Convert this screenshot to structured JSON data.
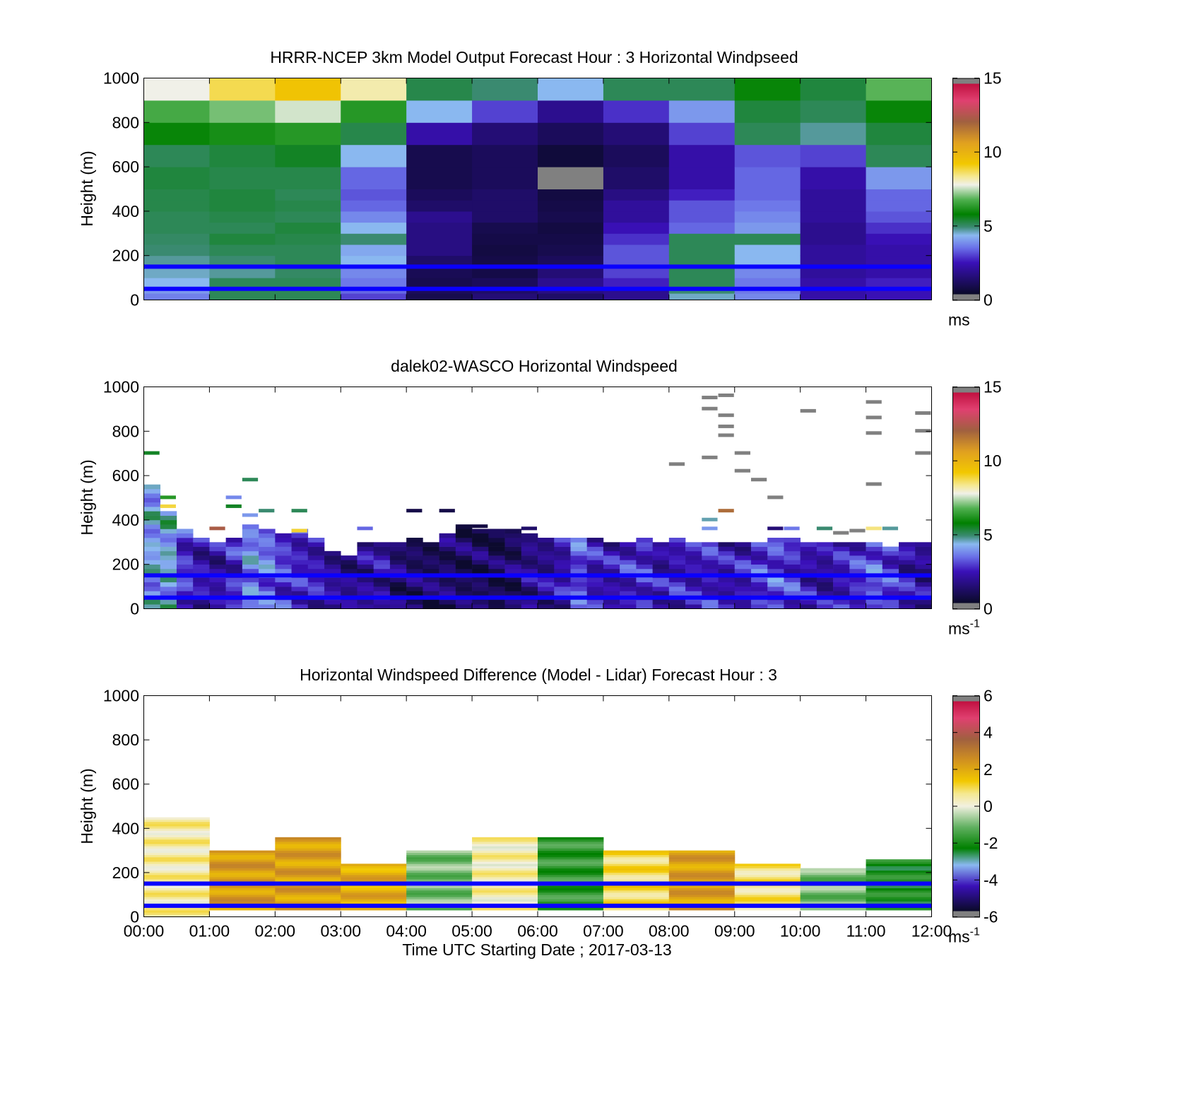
{
  "figure": {
    "xlabel": "Time UTC  Starting Date ; 2017-03-13",
    "xticks": [
      "00:00",
      "01:00",
      "02:00",
      "03:00",
      "04:00",
      "05:00",
      "06:00",
      "07:00",
      "08:00",
      "09:00",
      "10:00",
      "11:00",
      "12:00"
    ],
    "reference_lines_m": [
      50,
      150
    ],
    "reference_line_color": "#0a00ff"
  },
  "chart_data": [
    {
      "type": "heatmap",
      "title": "HRRR-NCEP 3km Model Output   Forecast Hour : 3 Horizontal Windpseed",
      "ylabel": "Height (m)",
      "ylim": [
        0,
        1000
      ],
      "yticks": [
        "0",
        "200",
        "400",
        "600",
        "800",
        "1000"
      ],
      "colorbar": {
        "min": 0,
        "max": 15,
        "ticks": [
          "0",
          "5",
          "10",
          "15"
        ],
        "unit": "ms",
        "unit_sup": "",
        "scheme": "speed"
      },
      "time_bins_h": [
        0,
        1,
        2,
        3,
        4,
        5,
        6,
        7,
        8,
        9,
        10,
        11
      ],
      "height_edges_m": [
        0,
        30,
        60,
        100,
        150,
        200,
        250,
        300,
        350,
        400,
        450,
        500,
        600,
        700,
        800,
        900,
        1000
      ],
      "values_ms": [
        [
          3.5,
          5.0,
          5.0,
          2.8,
          0.6,
          1.2,
          1.0,
          1.6,
          4.4,
          3.6,
          2.0,
          2.2
        ],
        [
          3.8,
          5.0,
          5.0,
          3.2,
          0.8,
          1.0,
          1.4,
          1.6,
          4.8,
          3.4,
          2.0,
          2.2
        ],
        [
          4.2,
          5.0,
          5.0,
          3.4,
          0.6,
          0.8,
          1.6,
          2.4,
          5.0,
          3.4,
          2.0,
          2.4
        ],
        [
          4.4,
          4.6,
          4.9,
          3.6,
          0.7,
          0.5,
          1.2,
          2.8,
          5.0,
          3.6,
          1.8,
          2.0
        ],
        [
          4.6,
          4.8,
          5.0,
          4.2,
          1.0,
          0.5,
          0.8,
          3.0,
          5.0,
          4.2,
          1.8,
          2.0
        ],
        [
          4.8,
          5.0,
          5.0,
          4.0,
          1.4,
          0.4,
          0.6,
          3.0,
          5.0,
          4.2,
          1.8,
          2.0
        ],
        [
          4.9,
          5.2,
          5.1,
          4.8,
          1.4,
          0.5,
          0.5,
          2.6,
          5.0,
          5.0,
          1.6,
          2.2
        ],
        [
          5.0,
          5.0,
          5.2,
          4.2,
          1.4,
          0.6,
          0.4,
          2.2,
          3.2,
          3.8,
          1.6,
          2.6
        ],
        [
          5.0,
          5.1,
          5.0,
          3.6,
          1.6,
          1.0,
          0.6,
          1.8,
          3.0,
          3.6,
          1.8,
          3.0
        ],
        [
          5.1,
          5.2,
          5.1,
          3.2,
          1.0,
          1.0,
          0.5,
          1.8,
          3.0,
          3.4,
          1.8,
          3.2
        ],
        [
          5.1,
          5.2,
          5.0,
          3.0,
          0.8,
          1.0,
          0.4,
          1.4,
          2.4,
          3.2,
          1.8,
          3.2
        ],
        [
          5.2,
          5.1,
          5.1,
          3.2,
          0.6,
          0.8,
          0.0,
          1.0,
          2.0,
          3.2,
          2.0,
          3.8
        ],
        [
          5.0,
          5.2,
          5.4,
          4.2,
          0.6,
          0.8,
          0.3,
          0.8,
          2.0,
          3.0,
          2.8,
          5.0
        ],
        [
          5.8,
          6.0,
          6.2,
          5.1,
          2.0,
          1.2,
          0.8,
          1.2,
          2.8,
          5.0,
          4.6,
          5.2
        ],
        [
          6.6,
          7.0,
          7.6,
          6.2,
          4.2,
          2.8,
          1.6,
          2.6,
          3.8,
          5.2,
          5.0,
          5.8
        ],
        [
          7.8,
          8.8,
          9.5,
          8.2,
          5.1,
          4.8,
          4.2,
          5.0,
          5.0,
          5.8,
          5.2,
          6.8
        ]
      ]
    },
    {
      "type": "heatmap",
      "title": "dalek02-WASCO  Horizontal Windspeed",
      "ylabel": "Height (m)",
      "ylim": [
        0,
        1000
      ],
      "yticks": [
        "0",
        "200",
        "400",
        "600",
        "800",
        "1000"
      ],
      "colorbar": {
        "min": 0,
        "max": 15,
        "ticks": [
          "0",
          "5",
          "10",
          "15"
        ],
        "unit": "ms",
        "unit_sup": "-1",
        "scheme": "speed"
      },
      "bin_minutes": 15,
      "height_step_m": 20,
      "column_tops_m": [
        560,
        440,
        350,
        310,
        300,
        320,
        370,
        360,
        340,
        360,
        320,
        250,
        240,
        300,
        300,
        300,
        320,
        300,
        340,
        380,
        360,
        360,
        360,
        330,
        310,
        310,
        320,
        310,
        300,
        300,
        310,
        300,
        310,
        300,
        290,
        300,
        300,
        300,
        310,
        310,
        300,
        290,
        300,
        290,
        300,
        280,
        300,
        290
      ],
      "column_speeds_ms": [
        4.0,
        4.2,
        2.6,
        2.0,
        1.9,
        2.4,
        3.6,
        3.4,
        2.8,
        2.4,
        2.2,
        1.8,
        1.5,
        1.6,
        1.8,
        1.2,
        1.0,
        0.9,
        1.0,
        0.8,
        0.8,
        0.6,
        1.0,
        1.6,
        1.6,
        2.0,
        3.0,
        2.2,
        2.0,
        2.4,
        2.6,
        2.0,
        2.2,
        2.2,
        2.4,
        2.0,
        2.2,
        2.8,
        3.0,
        2.6,
        2.0,
        1.8,
        2.2,
        2.6,
        3.2,
        2.8,
        2.0,
        1.6
      ],
      "scattered_bins": [
        {
          "time_bin": 0,
          "height_m": 700,
          "speed_ms": 5.4
        },
        {
          "time_bin": 1,
          "height_m": 500,
          "speed_ms": 6.2
        },
        {
          "time_bin": 1,
          "height_m": 460,
          "speed_ms": 8.9
        },
        {
          "time_bin": 4,
          "height_m": 360,
          "speed_ms": 12.5
        },
        {
          "time_bin": 5,
          "height_m": 500,
          "speed_ms": 3.6
        },
        {
          "time_bin": 5,
          "height_m": 460,
          "speed_ms": 5.4
        },
        {
          "time_bin": 6,
          "height_m": 580,
          "speed_ms": 5.0
        },
        {
          "time_bin": 6,
          "height_m": 420,
          "speed_ms": 3.8
        },
        {
          "time_bin": 7,
          "height_m": 440,
          "speed_ms": 4.8
        },
        {
          "time_bin": 9,
          "height_m": 440,
          "speed_ms": 5.0
        },
        {
          "time_bin": 9,
          "height_m": 350,
          "speed_ms": 9.0
        },
        {
          "time_bin": 13,
          "height_m": 360,
          "speed_ms": 3.2
        },
        {
          "time_bin": 16,
          "height_m": 440,
          "speed_ms": 0.5
        },
        {
          "time_bin": 18,
          "height_m": 440,
          "speed_ms": 0.5
        },
        {
          "time_bin": 20,
          "height_m": 370,
          "speed_ms": 0.4
        },
        {
          "time_bin": 23,
          "height_m": 360,
          "speed_ms": 1.0
        },
        {
          "time_bin": 32,
          "height_m": 650,
          "speed_ms": -1
        },
        {
          "time_bin": 34,
          "height_m": 950,
          "speed_ms": -1
        },
        {
          "time_bin": 34,
          "height_m": 900,
          "speed_ms": -1
        },
        {
          "time_bin": 35,
          "height_m": 960,
          "speed_ms": -1
        },
        {
          "time_bin": 35,
          "height_m": 870,
          "speed_ms": -1
        },
        {
          "time_bin": 35,
          "height_m": 820,
          "speed_ms": -1
        },
        {
          "time_bin": 35,
          "height_m": 780,
          "speed_ms": -1
        },
        {
          "time_bin": 34,
          "height_m": 680,
          "speed_ms": -1
        },
        {
          "time_bin": 35,
          "height_m": 440,
          "speed_ms": 12.0
        },
        {
          "time_bin": 34,
          "height_m": 400,
          "speed_ms": 4.5
        },
        {
          "time_bin": 34,
          "height_m": 360,
          "speed_ms": 3.8
        },
        {
          "time_bin": 36,
          "height_m": 700,
          "speed_ms": -1
        },
        {
          "time_bin": 36,
          "height_m": 620,
          "speed_ms": -1
        },
        {
          "time_bin": 37,
          "height_m": 580,
          "speed_ms": -1
        },
        {
          "time_bin": 38,
          "height_m": 500,
          "speed_ms": -1
        },
        {
          "time_bin": 38,
          "height_m": 360,
          "speed_ms": 1.2
        },
        {
          "time_bin": 39,
          "height_m": 360,
          "speed_ms": 3.4
        },
        {
          "time_bin": 40,
          "height_m": 890,
          "speed_ms": -1
        },
        {
          "time_bin": 41,
          "height_m": 360,
          "speed_ms": 4.8
        },
        {
          "time_bin": 42,
          "height_m": 340,
          "speed_ms": -1
        },
        {
          "time_bin": 43,
          "height_m": 350,
          "speed_ms": -1
        },
        {
          "time_bin": 44,
          "height_m": 360,
          "speed_ms": 8.5
        },
        {
          "time_bin": 45,
          "height_m": 360,
          "speed_ms": 4.6
        },
        {
          "time_bin": 44,
          "height_m": 930,
          "speed_ms": -1
        },
        {
          "time_bin": 44,
          "height_m": 860,
          "speed_ms": -1
        },
        {
          "time_bin": 44,
          "height_m": 790,
          "speed_ms": -1
        },
        {
          "time_bin": 44,
          "height_m": 560,
          "speed_ms": -1
        },
        {
          "time_bin": 47,
          "height_m": 880,
          "speed_ms": -1
        },
        {
          "time_bin": 47,
          "height_m": 800,
          "speed_ms": -1
        },
        {
          "time_bin": 47,
          "height_m": 700,
          "speed_ms": -1
        }
      ]
    },
    {
      "type": "heatmap",
      "title": "Horizontal Windspeed Difference (Model - Lidar) Forecast Hour : 3",
      "ylabel": "Height (m)",
      "ylim": [
        0,
        1000
      ],
      "yticks": [
        "0",
        "200",
        "400",
        "600",
        "800",
        "1000"
      ],
      "colorbar": {
        "min": -6,
        "max": 6,
        "ticks": [
          "-6",
          "-4",
          "-2",
          "0",
          "2",
          "4",
          "6"
        ],
        "unit": "ms",
        "unit_sup": "-1",
        "scheme": "diff"
      },
      "time_bins_h": [
        0,
        1,
        2,
        3,
        4,
        5,
        6,
        7,
        8,
        9,
        10,
        11
      ],
      "column_tops_m": [
        450,
        300,
        360,
        240,
        300,
        360,
        360,
        300,
        300,
        240,
        220,
        260
      ],
      "column_bottoms_m": [
        0,
        30,
        30,
        30,
        30,
        30,
        30,
        30,
        30,
        30,
        30,
        30
      ],
      "column_diff_ms": [
        0.5,
        2.4,
        2.3,
        2.0,
        -1.0,
        0.4,
        -1.8,
        1.0,
        2.3,
        0.8,
        -1.0,
        -2.2
      ]
    }
  ]
}
